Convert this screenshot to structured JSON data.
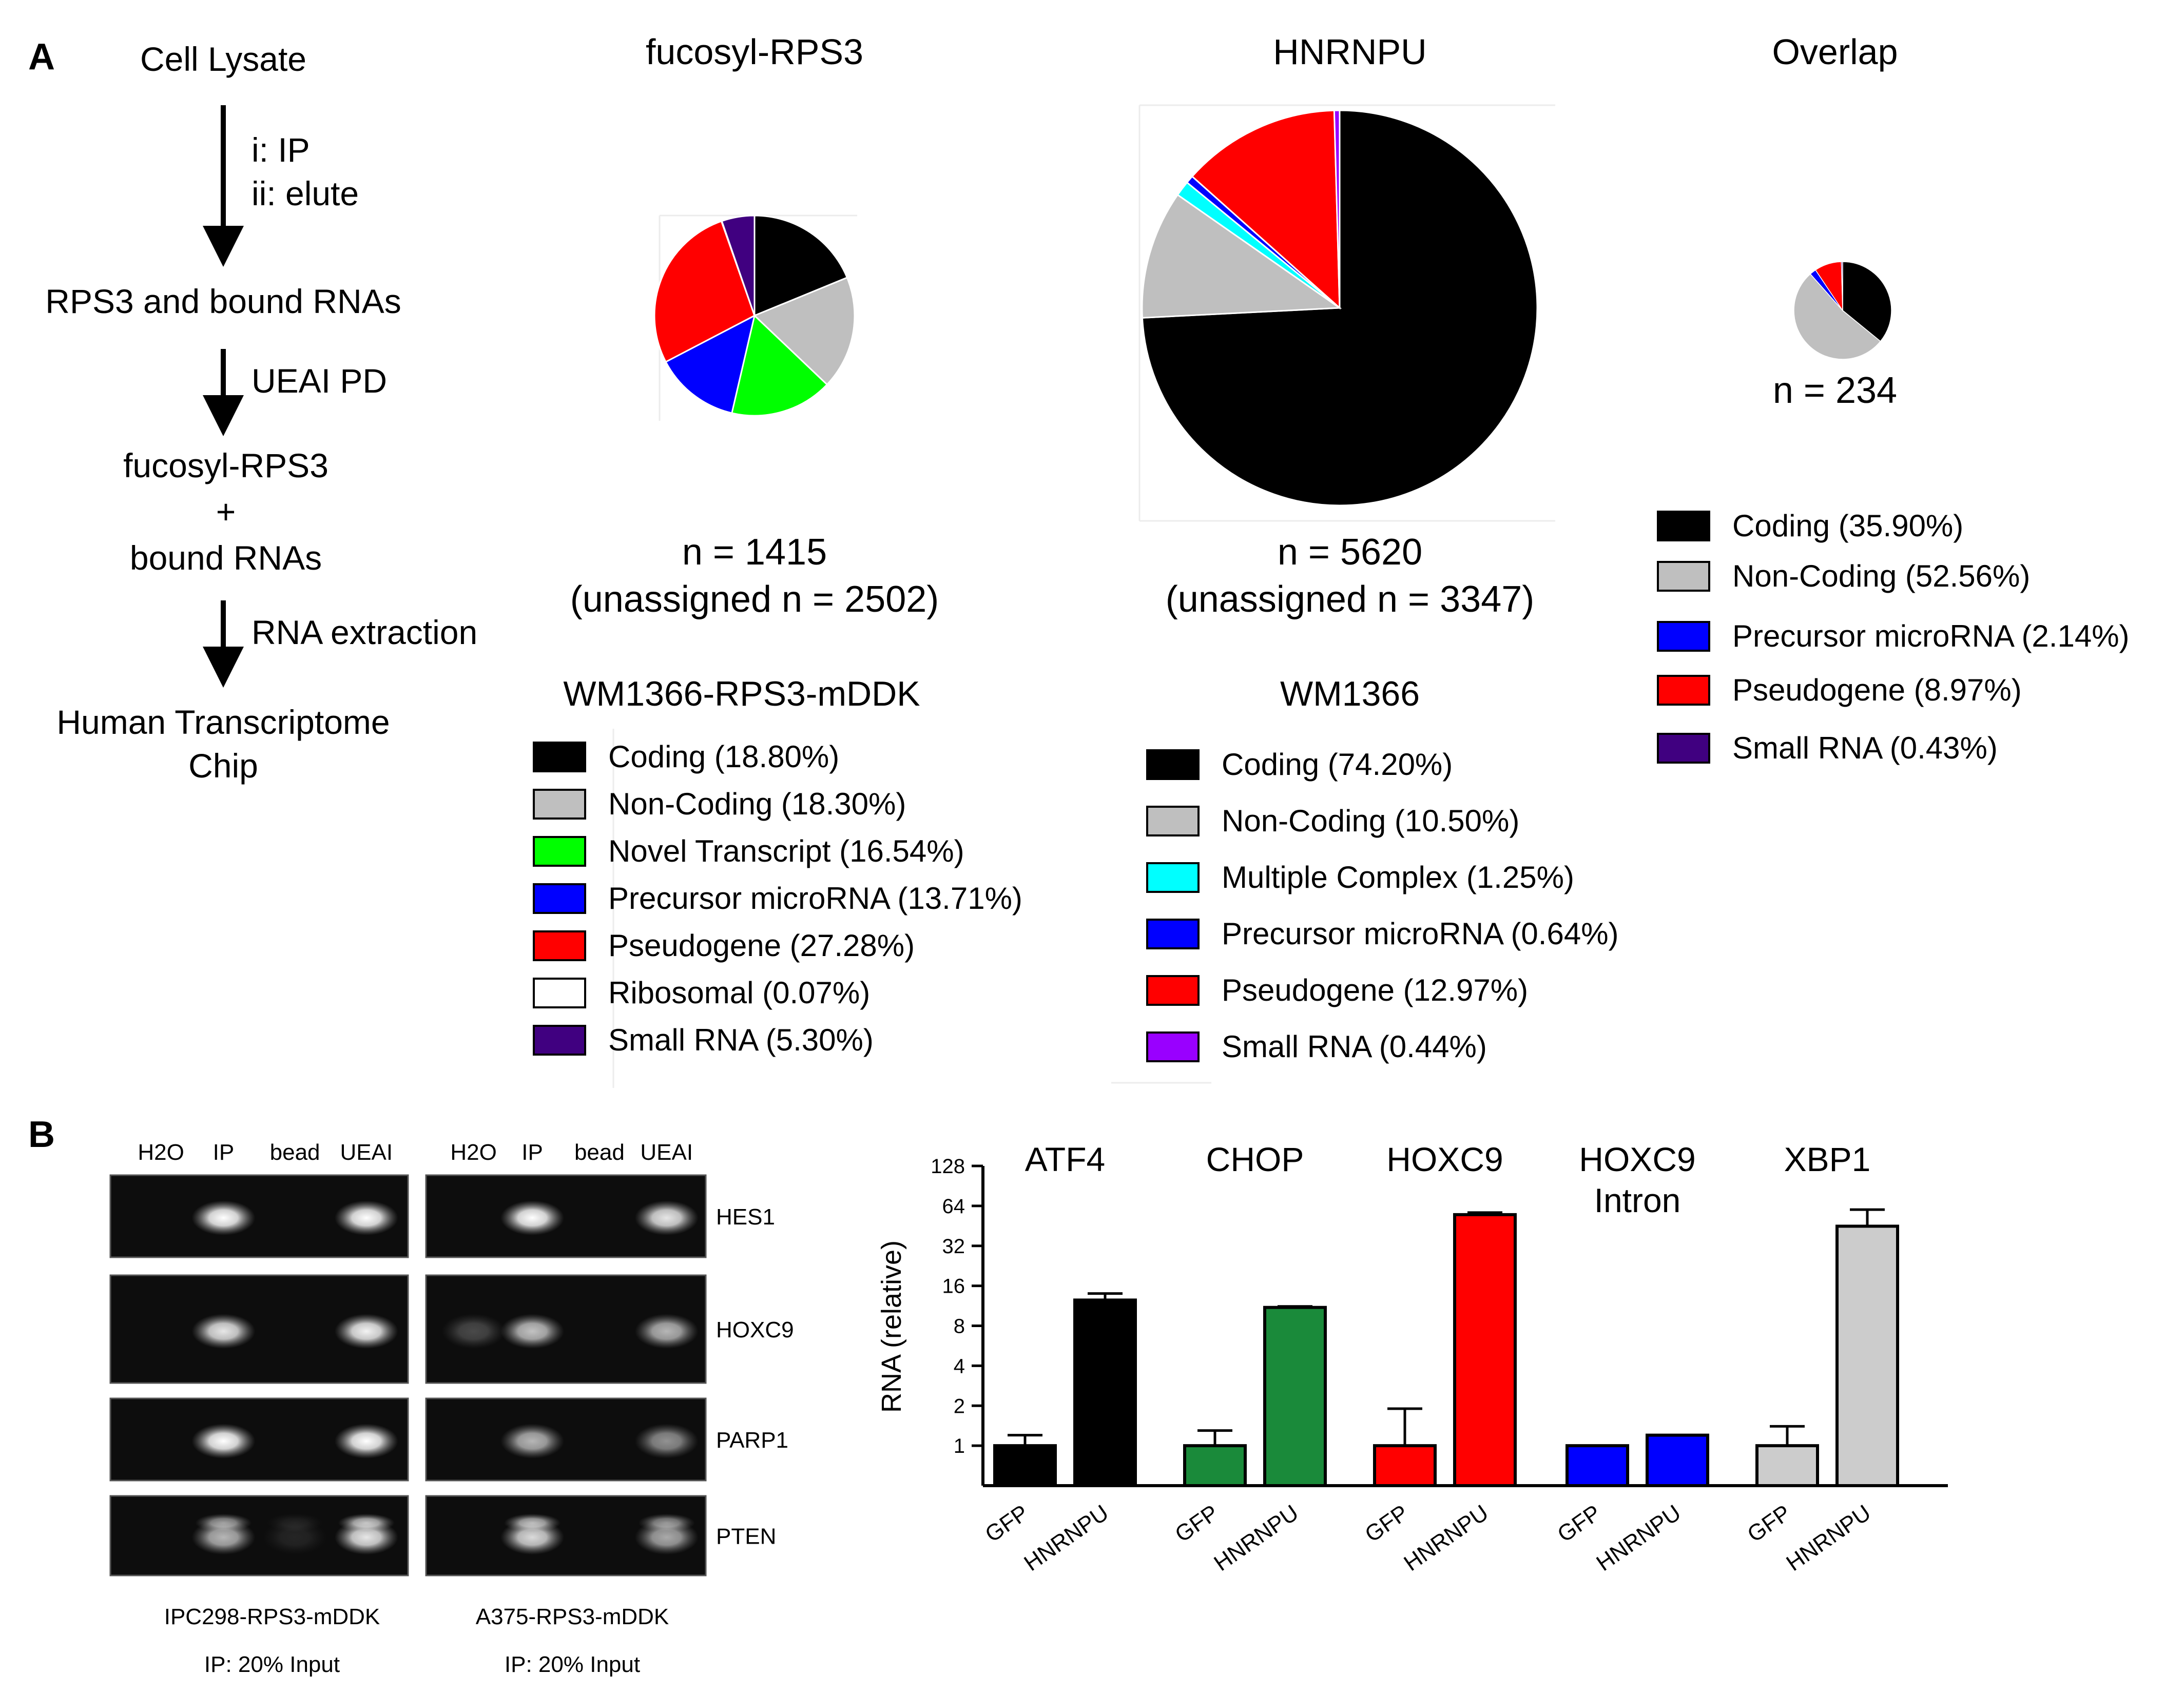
{
  "panels": {
    "a": "A",
    "b": "B"
  },
  "flowchart": {
    "steps": [
      "Cell Lysate",
      "RPS3 and bound RNAs",
      "fucosyl-RPS3",
      "+",
      "bound RNAs",
      "Human Transcriptome",
      "Chip"
    ],
    "arrows": [
      "i: IP",
      "ii: elute",
      "UEAI PD",
      "RNA extraction"
    ]
  },
  "pies": [
    {
      "title": "fucosyl-RPS3",
      "n_label": "n = 1415",
      "unassigned_label": "(unassigned n = 2502)",
      "legend_title": "WM1366-RPS3-mDDK",
      "slices": [
        {
          "label": "Coding (18.80%)",
          "value": 18.8,
          "color": "#000000"
        },
        {
          "label": "Non-Coding (18.30%)",
          "value": 18.3,
          "color": "#bfbfbf"
        },
        {
          "label": "Novel Transcript (16.54%)",
          "value": 16.54,
          "color": "#00ff00"
        },
        {
          "label": "Precursor microRNA (13.71%)",
          "value": 13.71,
          "color": "#0000ff"
        },
        {
          "label": "Pseudogene (27.28%)",
          "value": 27.28,
          "color": "#ff0000"
        },
        {
          "label": "Ribosomal (0.07%)",
          "value": 0.07,
          "color": "#ffffff"
        },
        {
          "label": "Small RNA (5.30%)",
          "value": 5.3,
          "color": "#400080"
        }
      ]
    },
    {
      "title": "HNRNPU",
      "n_label": "n = 5620",
      "unassigned_label": "(unassigned n = 3347)",
      "legend_title": "WM1366",
      "slices": [
        {
          "label": "Coding (74.20%)",
          "value": 74.2,
          "color": "#000000"
        },
        {
          "label": "Non-Coding (10.50%)",
          "value": 10.5,
          "color": "#bfbfbf"
        },
        {
          "label": "Multiple Complex (1.25%)",
          "value": 1.25,
          "color": "#00ffff"
        },
        {
          "label": "Precursor microRNA (0.64%)",
          "value": 0.64,
          "color": "#0000ff"
        },
        {
          "label": "Pseudogene (12.97%)",
          "value": 12.97,
          "color": "#ff0000"
        },
        {
          "label": "Small RNA (0.44%)",
          "value": 0.44,
          "color": "#9900ff"
        }
      ]
    },
    {
      "title": "Overlap",
      "n_label": "n = 234",
      "unassigned_label": "",
      "legend_title": "",
      "slices": [
        {
          "label": "Coding (35.90%)",
          "value": 35.9,
          "color": "#000000"
        },
        {
          "label": "Non-Coding (52.56%)",
          "value": 52.56,
          "color": "#bfbfbf"
        },
        {
          "label": "Precursor microRNA (2.14%)",
          "value": 2.14,
          "color": "#0000ff"
        },
        {
          "label": "Pseudogene (8.97%)",
          "value": 8.97,
          "color": "#ff0000"
        },
        {
          "label": "Small RNA (0.43%)",
          "value": 0.43,
          "color": "#400080"
        }
      ]
    }
  ],
  "gel": {
    "lanes": [
      "H2O",
      "IP",
      "bead",
      "UEAI"
    ],
    "genes": [
      "HES1",
      "HOXC9",
      "PARP1",
      "PTEN"
    ],
    "captions": [
      {
        "line1": "IPC298-RPS3-mDDK",
        "line2": "IP: 20% Input"
      },
      {
        "line1": "A375-RPS3-mDDK",
        "line2": "IP: 20% Input"
      }
    ]
  },
  "chart_data": {
    "type": "bar",
    "ylabel": "RNA (relative)",
    "yscale": "log2",
    "ylim": [
      0.5,
      128
    ],
    "yticks": [
      "1",
      "2",
      "4",
      "8",
      "16",
      "32",
      "64",
      "128"
    ],
    "groups": [
      "GFP",
      "HNRNPU"
    ],
    "categories": [
      {
        "name": "ATF4",
        "sub": "",
        "color": "#000000",
        "values": [
          1.0,
          12.5
        ],
        "errors": [
          1.2,
          14.0
        ]
      },
      {
        "name": "CHOP",
        "sub": "",
        "color": "#1a8a3a",
        "values": [
          1.0,
          11.0
        ],
        "errors": [
          1.3,
          11.2
        ]
      },
      {
        "name": "HOXC9",
        "sub": "",
        "color": "#ff0000",
        "values": [
          1.0,
          55.0
        ],
        "errors": [
          1.9,
          57.0
        ]
      },
      {
        "name": "HOXC9",
        "sub": "Intron",
        "color": "#0000ff",
        "values": [
          1.0,
          1.2
        ],
        "errors": [
          1.0,
          1.2
        ]
      },
      {
        "name": "XBP1",
        "sub": "",
        "color": "#cccccc",
        "values": [
          1.0,
          45.0
        ],
        "errors": [
          1.4,
          60.0
        ]
      }
    ]
  }
}
